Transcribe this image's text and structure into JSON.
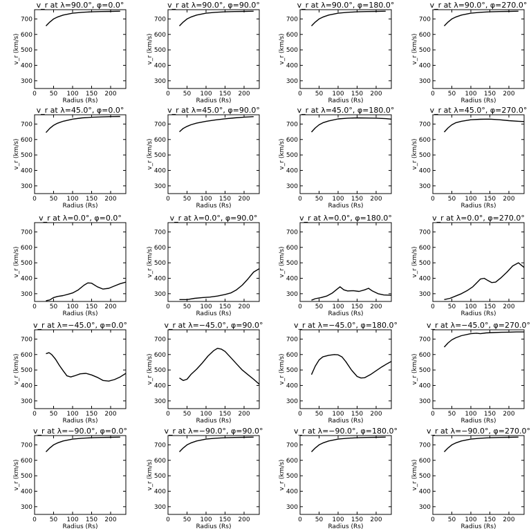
{
  "figure": {
    "background": "#ffffff",
    "foreground": "#000000"
  },
  "chart_data": [
    {
      "type": "line",
      "title": "v_r at λ=90.0°, φ=0.0°",
      "xlabel": "Radius (Rs)",
      "ylabel": "v_r (km/s)",
      "xlim": [
        0,
        240
      ],
      "ylim": [
        250,
        760
      ],
      "xticks": [
        0,
        50,
        100,
        150,
        200
      ],
      "yticks": [
        300,
        400,
        500,
        600,
        700
      ],
      "series": [
        {
          "x": [
            30,
            40,
            50,
            60,
            75,
            100,
            125,
            150,
            175,
            200,
            225
          ],
          "y": [
            655,
            680,
            700,
            712,
            725,
            737,
            743,
            746,
            748,
            749,
            750
          ]
        }
      ]
    },
    {
      "type": "line",
      "title": "v_r at λ=90.0°, φ=90.0°",
      "xlabel": "Radius (Rs)",
      "ylabel": "v_r (km/s)",
      "xlim": [
        0,
        240
      ],
      "ylim": [
        250,
        760
      ],
      "xticks": [
        0,
        50,
        100,
        150,
        200
      ],
      "yticks": [
        300,
        400,
        500,
        600,
        700
      ],
      "series": [
        {
          "x": [
            30,
            40,
            50,
            60,
            75,
            100,
            125,
            150,
            175,
            200,
            225
          ],
          "y": [
            655,
            680,
            700,
            712,
            725,
            737,
            743,
            746,
            748,
            749,
            750
          ]
        }
      ]
    },
    {
      "type": "line",
      "title": "v_r at λ=90.0°, φ=180.0°",
      "xlabel": "Radius (Rs)",
      "ylabel": "v_r (km/s)",
      "xlim": [
        0,
        240
      ],
      "ylim": [
        250,
        760
      ],
      "xticks": [
        0,
        50,
        100,
        150,
        200
      ],
      "yticks": [
        300,
        400,
        500,
        600,
        700
      ],
      "series": [
        {
          "x": [
            30,
            40,
            50,
            60,
            75,
            100,
            125,
            150,
            175,
            200,
            225
          ],
          "y": [
            655,
            680,
            700,
            712,
            725,
            737,
            743,
            746,
            748,
            749,
            750
          ]
        }
      ]
    },
    {
      "type": "line",
      "title": "v_r at λ=90.0°, φ=270.0°",
      "xlabel": "Radius (Rs)",
      "ylabel": "v_r (km/s)",
      "xlim": [
        0,
        240
      ],
      "ylim": [
        250,
        760
      ],
      "xticks": [
        0,
        50,
        100,
        150,
        200
      ],
      "yticks": [
        300,
        400,
        500,
        600,
        700
      ],
      "series": [
        {
          "x": [
            30,
            40,
            50,
            60,
            75,
            100,
            125,
            150,
            175,
            200,
            225
          ],
          "y": [
            655,
            680,
            700,
            712,
            725,
            737,
            743,
            746,
            748,
            749,
            750
          ]
        }
      ]
    },
    {
      "type": "line",
      "title": "v_r at λ=45.0°, φ=0.0°",
      "xlabel": "Radius (Rs)",
      "ylabel": "v_r (km/s)",
      "xlim": [
        0,
        240
      ],
      "ylim": [
        250,
        760
      ],
      "xticks": [
        0,
        50,
        100,
        150,
        200
      ],
      "yticks": [
        300,
        400,
        500,
        600,
        700
      ],
      "series": [
        {
          "x": [
            30,
            40,
            50,
            60,
            75,
            100,
            125,
            150,
            175,
            200,
            225
          ],
          "y": [
            645,
            672,
            692,
            705,
            718,
            732,
            740,
            744,
            746,
            748,
            749
          ]
        }
      ]
    },
    {
      "type": "line",
      "title": "v_r at λ=45.0°, φ=90.0°",
      "xlabel": "Radius (Rs)",
      "ylabel": "v_r (km/s)",
      "xlim": [
        0,
        240
      ],
      "ylim": [
        250,
        760
      ],
      "xticks": [
        0,
        50,
        100,
        150,
        200
      ],
      "yticks": [
        300,
        400,
        500,
        600,
        700
      ],
      "series": [
        {
          "x": [
            30,
            40,
            50,
            60,
            75,
            100,
            125,
            150,
            175,
            200,
            225
          ],
          "y": [
            650,
            672,
            685,
            695,
            706,
            718,
            727,
            734,
            740,
            745,
            748
          ]
        }
      ]
    },
    {
      "type": "line",
      "title": "v_r at λ=45.0°, φ=180.0°",
      "xlabel": "Radius (Rs)",
      "ylabel": "v_r (km/s)",
      "xlim": [
        0,
        240
      ],
      "ylim": [
        250,
        760
      ],
      "xticks": [
        0,
        50,
        100,
        150,
        200
      ],
      "yticks": [
        300,
        400,
        500,
        600,
        700
      ],
      "series": [
        {
          "x": [
            30,
            40,
            50,
            60,
            75,
            100,
            125,
            150,
            175,
            200,
            225,
            240
          ],
          "y": [
            648,
            675,
            695,
            708,
            720,
            733,
            738,
            740,
            739,
            738,
            735,
            732
          ]
        }
      ]
    },
    {
      "type": "line",
      "title": "v_r at λ=45.0°, φ=270.0°",
      "xlabel": "Radius (Rs)",
      "ylabel": "v_r (km/s)",
      "xlim": [
        0,
        240
      ],
      "ylim": [
        250,
        760
      ],
      "xticks": [
        0,
        50,
        100,
        150,
        200
      ],
      "yticks": [
        300,
        400,
        500,
        600,
        700
      ],
      "series": [
        {
          "x": [
            30,
            40,
            50,
            60,
            75,
            100,
            125,
            150,
            175,
            200,
            225,
            240
          ],
          "y": [
            648,
            675,
            695,
            708,
            718,
            728,
            731,
            732,
            728,
            722,
            718,
            716
          ]
        }
      ]
    },
    {
      "type": "line",
      "title": "v_r at λ=0.0°, φ=0.0°",
      "xlabel": "Radius (Rs)",
      "ylabel": "v_r (km/s)",
      "xlim": [
        0,
        240
      ],
      "ylim": [
        250,
        760
      ],
      "xticks": [
        0,
        50,
        100,
        150,
        200
      ],
      "yticks": [
        300,
        400,
        500,
        600,
        700
      ],
      "series": [
        {
          "x": [
            30,
            40,
            50,
            60,
            75,
            90,
            100,
            115,
            130,
            140,
            150,
            165,
            180,
            195,
            210,
            225,
            240
          ],
          "y": [
            255,
            260,
            275,
            282,
            288,
            298,
            305,
            325,
            355,
            370,
            368,
            345,
            330,
            335,
            350,
            365,
            375
          ]
        }
      ]
    },
    {
      "type": "line",
      "title": "v_r at λ=0.0°, φ=90.0°",
      "xlabel": "Radius (Rs)",
      "ylabel": "v_r (km/s)",
      "xlim": [
        0,
        240
      ],
      "ylim": [
        250,
        760
      ],
      "xticks": [
        0,
        50,
        100,
        150,
        200
      ],
      "yticks": [
        300,
        400,
        500,
        600,
        700
      ],
      "series": [
        {
          "x": [
            30,
            50,
            70,
            90,
            110,
            130,
            150,
            165,
            180,
            195,
            210,
            225,
            240
          ],
          "y": [
            262,
            262,
            270,
            275,
            278,
            285,
            295,
            305,
            325,
            355,
            395,
            440,
            462
          ]
        }
      ]
    },
    {
      "type": "line",
      "title": "v_r at λ=0.0°, φ=180.0°",
      "xlabel": "Radius (Rs)",
      "ylabel": "v_r (km/s)",
      "xlim": [
        0,
        240
      ],
      "ylim": [
        250,
        760
      ],
      "xticks": [
        0,
        50,
        100,
        150,
        200
      ],
      "yticks": [
        300,
        400,
        500,
        600,
        700
      ],
      "series": [
        {
          "x": [
            30,
            40,
            55,
            70,
            85,
            95,
            105,
            115,
            125,
            140,
            155,
            170,
            180,
            190,
            205,
            220,
            240
          ],
          "y": [
            258,
            268,
            275,
            285,
            305,
            325,
            345,
            325,
            318,
            320,
            315,
            325,
            335,
            318,
            300,
            292,
            290
          ]
        }
      ]
    },
    {
      "type": "line",
      "title": "v_r at λ=0.0°, φ=270.0°",
      "xlabel": "Radius (Rs)",
      "ylabel": "v_r (km/s)",
      "xlim": [
        0,
        240
      ],
      "ylim": [
        250,
        760
      ],
      "xticks": [
        0,
        50,
        100,
        150,
        200
      ],
      "yticks": [
        300,
        400,
        500,
        600,
        700
      ],
      "series": [
        {
          "x": [
            30,
            45,
            60,
            75,
            90,
            105,
            115,
            125,
            135,
            145,
            155,
            165,
            180,
            195,
            210,
            225,
            240
          ],
          "y": [
            262,
            270,
            285,
            300,
            320,
            345,
            370,
            395,
            400,
            385,
            372,
            375,
            405,
            440,
            480,
            500,
            470
          ]
        }
      ]
    },
    {
      "type": "line",
      "title": "v_r at λ=−45.0°, φ=0.0°",
      "xlabel": "Radius (Rs)",
      "ylabel": "v_r (km/s)",
      "xlim": [
        0,
        240
      ],
      "ylim": [
        250,
        760
      ],
      "xticks": [
        0,
        50,
        100,
        150,
        200
      ],
      "yticks": [
        300,
        400,
        500,
        600,
        700
      ],
      "series": [
        {
          "x": [
            30,
            38,
            45,
            55,
            65,
            75,
            85,
            95,
            105,
            120,
            135,
            150,
            165,
            180,
            195,
            210,
            225,
            240
          ],
          "y": [
            605,
            612,
            600,
            570,
            530,
            495,
            462,
            455,
            462,
            475,
            478,
            468,
            452,
            432,
            428,
            438,
            455,
            478
          ]
        }
      ]
    },
    {
      "type": "line",
      "title": "v_r at λ=−45.0°, φ=90.0°",
      "xlabel": "Radius (Rs)",
      "ylabel": "v_r (km/s)",
      "xlim": [
        0,
        240
      ],
      "ylim": [
        250,
        760
      ],
      "xticks": [
        0,
        50,
        100,
        150,
        200
      ],
      "yticks": [
        300,
        400,
        500,
        600,
        700
      ],
      "series": [
        {
          "x": [
            30,
            35,
            40,
            50,
            60,
            75,
            90,
            105,
            120,
            130,
            140,
            150,
            165,
            180,
            195,
            210,
            225,
            240
          ],
          "y": [
            448,
            440,
            432,
            440,
            470,
            505,
            545,
            590,
            625,
            640,
            635,
            620,
            580,
            540,
            500,
            470,
            440,
            408
          ]
        }
      ]
    },
    {
      "type": "line",
      "title": "v_r at λ=−45.0°, φ=180.0°",
      "xlabel": "Radius (Rs)",
      "ylabel": "v_r (km/s)",
      "xlim": [
        0,
        240
      ],
      "ylim": [
        250,
        760
      ],
      "xticks": [
        0,
        50,
        100,
        150,
        200
      ],
      "yticks": [
        300,
        400,
        500,
        600,
        700
      ],
      "series": [
        {
          "x": [
            30,
            40,
            50,
            60,
            75,
            90,
            100,
            110,
            120,
            135,
            150,
            160,
            170,
            185,
            200,
            215,
            230,
            240
          ],
          "y": [
            470,
            525,
            565,
            585,
            595,
            600,
            598,
            585,
            555,
            500,
            458,
            448,
            450,
            470,
            495,
            520,
            542,
            555
          ]
        }
      ]
    },
    {
      "type": "line",
      "title": "v_r at λ=−45.0°, φ=270.0°",
      "xlabel": "Radius (Rs)",
      "ylabel": "v_r (km/s)",
      "xlim": [
        0,
        240
      ],
      "ylim": [
        250,
        760
      ],
      "xticks": [
        0,
        50,
        100,
        150,
        200
      ],
      "yticks": [
        300,
        400,
        500,
        600,
        700
      ],
      "series": [
        {
          "x": [
            30,
            40,
            50,
            60,
            75,
            100,
            115,
            125,
            140,
            160,
            180,
            200,
            220,
            240
          ],
          "y": [
            648,
            675,
            695,
            708,
            722,
            735,
            738,
            735,
            740,
            742,
            744,
            745,
            746,
            746
          ]
        }
      ]
    },
    {
      "type": "line",
      "title": "v_r at λ=−90.0°, φ=0.0°",
      "xlabel": "Radius (Rs)",
      "ylabel": "v_r (km/s)",
      "xlim": [
        0,
        240
      ],
      "ylim": [
        250,
        760
      ],
      "xticks": [
        0,
        50,
        100,
        150,
        200
      ],
      "yticks": [
        300,
        400,
        500,
        600,
        700
      ],
      "series": [
        {
          "x": [
            30,
            40,
            50,
            60,
            75,
            100,
            125,
            150,
            175,
            200,
            225
          ],
          "y": [
            655,
            680,
            700,
            712,
            725,
            737,
            743,
            746,
            748,
            749,
            750
          ]
        }
      ]
    },
    {
      "type": "line",
      "title": "v_r at λ=−90.0°, φ=90.0°",
      "xlabel": "Radius (Rs)",
      "ylabel": "v_r (km/s)",
      "xlim": [
        0,
        240
      ],
      "ylim": [
        250,
        760
      ],
      "xticks": [
        0,
        50,
        100,
        150,
        200
      ],
      "yticks": [
        300,
        400,
        500,
        600,
        700
      ],
      "series": [
        {
          "x": [
            30,
            40,
            50,
            60,
            75,
            100,
            125,
            150,
            175,
            200,
            225
          ],
          "y": [
            655,
            680,
            700,
            712,
            725,
            737,
            743,
            746,
            748,
            749,
            750
          ]
        }
      ]
    },
    {
      "type": "line",
      "title": "v_r at λ=−90.0°, φ=180.0°",
      "xlabel": "Radius (Rs)",
      "ylabel": "v_r (km/s)",
      "xlim": [
        0,
        240
      ],
      "ylim": [
        250,
        760
      ],
      "xticks": [
        0,
        50,
        100,
        150,
        200
      ],
      "yticks": [
        300,
        400,
        500,
        600,
        700
      ],
      "series": [
        {
          "x": [
            30,
            40,
            50,
            60,
            75,
            100,
            125,
            150,
            175,
            200,
            225
          ],
          "y": [
            655,
            680,
            700,
            712,
            725,
            737,
            743,
            746,
            748,
            749,
            750
          ]
        }
      ]
    },
    {
      "type": "line",
      "title": "v_r at λ=−90.0°, φ=270.0°",
      "xlabel": "Radius (Rs)",
      "ylabel": "v_r (km/s)",
      "xlim": [
        0,
        240
      ],
      "ylim": [
        250,
        760
      ],
      "xticks": [
        0,
        50,
        100,
        150,
        200
      ],
      "yticks": [
        300,
        400,
        500,
        600,
        700
      ],
      "series": [
        {
          "x": [
            30,
            40,
            50,
            60,
            75,
            100,
            125,
            150,
            175,
            200,
            225
          ],
          "y": [
            655,
            680,
            700,
            712,
            725,
            737,
            743,
            746,
            748,
            749,
            750
          ]
        }
      ]
    }
  ]
}
